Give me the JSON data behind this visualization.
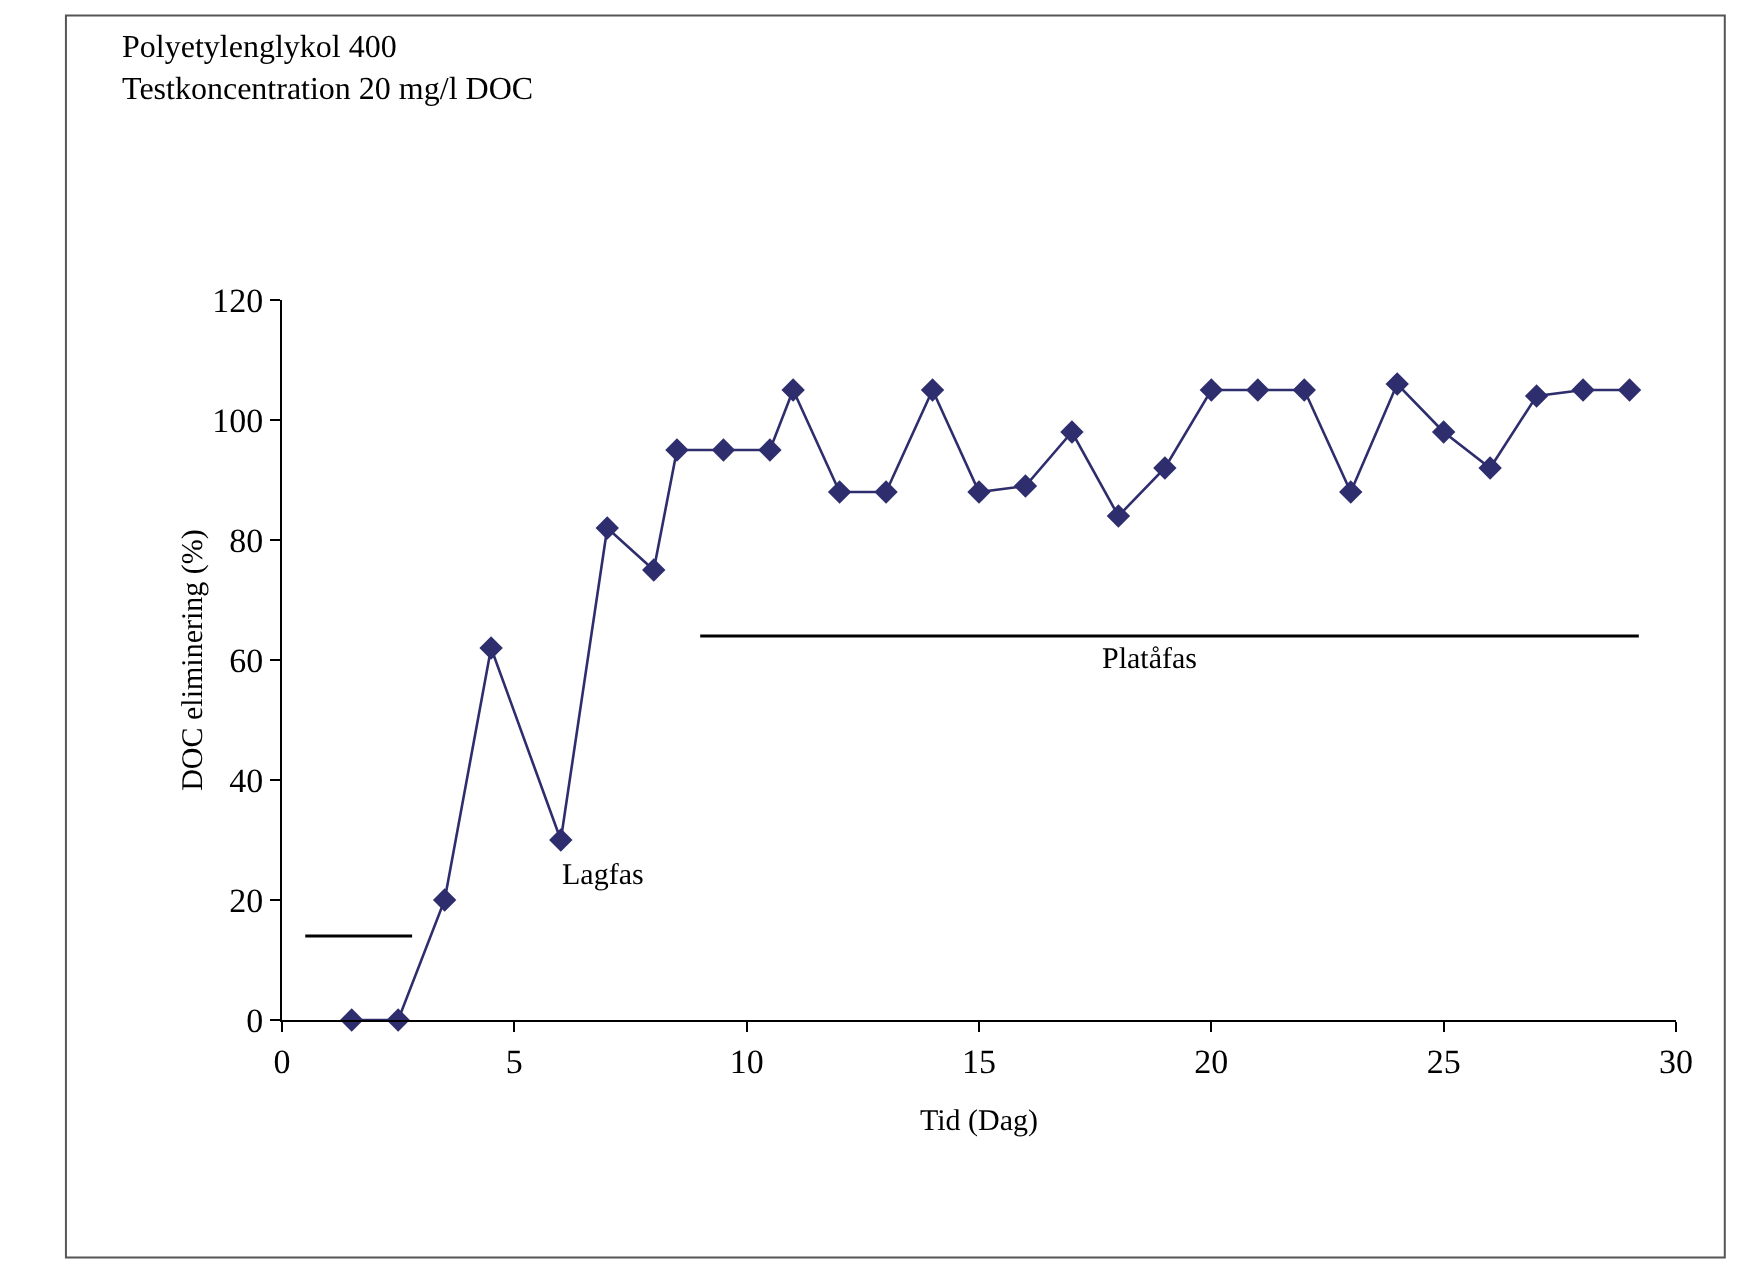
{
  "chart_data": {
    "type": "line",
    "title": "Polyetylenglykol 400",
    "subtitle": "Testkoncentration 20 mg/l DOC",
    "xlabel": "Tid (Dag)",
    "ylabel": "DOC eliminering (%)",
    "xlim": [
      0,
      30
    ],
    "xticks": [
      0,
      5,
      10,
      15,
      20,
      25,
      30
    ],
    "ylim": [
      0,
      120
    ],
    "yticks": [
      0,
      20,
      40,
      60,
      80,
      100,
      120
    ],
    "grid": false,
    "marker": "diamond",
    "line_style": "solid",
    "series": [
      {
        "color": "#2e2e6e",
        "x": [
          1.5,
          2.5,
          3.5,
          4.5,
          6,
          7,
          8,
          8.5,
          9.5,
          10.5,
          11,
          12,
          13,
          14,
          15,
          16,
          17,
          18,
          19,
          20,
          21,
          22,
          23,
          24,
          25,
          26,
          27,
          28,
          29
        ],
        "values": [
          0,
          0,
          20,
          62,
          30,
          82,
          75,
          95,
          95,
          95,
          105,
          88,
          88,
          105,
          88,
          89,
          98,
          84,
          92,
          105,
          105,
          105,
          88,
          106,
          98,
          92,
          104,
          105,
          105
        ]
      },
      {
        "type": "line",
        "marker": "none",
        "color": "#000000",
        "x": [
          0.5,
          2.8
        ],
        "values": [
          14,
          14
        ]
      },
      {
        "type": "line",
        "marker": "none",
        "color": "#000000",
        "x": [
          9,
          29.2
        ],
        "values": [
          64,
          64
        ]
      }
    ],
    "annotations": [
      "Lagfas",
      "Platåfas"
    ]
  }
}
